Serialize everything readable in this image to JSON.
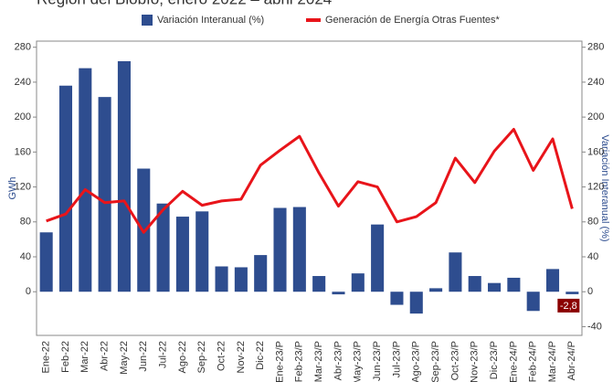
{
  "chart_data": {
    "type": "bar_line",
    "title": "Región del Biobío, enero 2022 – abril 2024",
    "y_label": "GWh",
    "y2_label": "Variación Interanual (%)",
    "categories": [
      "Ene-22",
      "Feb-22",
      "Mar-22",
      "Abr-22",
      "May-22",
      "Jun-22",
      "Jul-22",
      "Ago-22",
      "Sep-22",
      "Oct-22",
      "Nov-22",
      "Dic-22",
      "Ene-23/P",
      "Feb-23/P",
      "Mar-23/P",
      "Abr-23/P",
      "May-23/P",
      "Jun-23/P",
      "Jul-23/P",
      "Ago-23/P",
      "Sep-23/P",
      "Oct-23/P",
      "Nov-23/P",
      "Dic-23/P",
      "Ene-24/P",
      "Feb-24/P",
      "Mar-24/P",
      "Abr-24/P"
    ],
    "series": [
      {
        "name": "Variación Interanual (%)",
        "type": "bar",
        "axis": "y2",
        "color": "#2e4d8f",
        "values": [
          68,
          236,
          256,
          223,
          264,
          141,
          101,
          86,
          92,
          29,
          28,
          42,
          96,
          97,
          18,
          -3,
          21,
          77,
          -15,
          -25,
          4,
          45,
          18,
          10,
          16,
          -22,
          26,
          -2.8
        ],
        "value_labels": [
          null,
          null,
          null,
          null,
          null,
          null,
          null,
          null,
          null,
          null,
          null,
          null,
          null,
          null,
          null,
          null,
          null,
          null,
          null,
          null,
          null,
          null,
          null,
          null,
          null,
          null,
          null,
          "-2,8"
        ]
      },
      {
        "name": "Generación de Energía Otras Fuentes*",
        "type": "line",
        "axis": "y",
        "color": "#e8141a",
        "values": [
          81,
          89,
          117,
          102,
          104,
          68,
          94,
          115,
          99,
          104,
          106,
          145,
          162,
          178,
          136,
          98,
          126,
          120,
          80,
          86,
          102,
          153,
          125,
          161,
          186,
          139,
          175,
          95
        ]
      }
    ],
    "ylim": [
      -50,
      287
    ],
    "yticks": [
      0,
      40,
      80,
      120,
      160,
      200,
      240,
      280
    ],
    "y2lim": [
      -50,
      287
    ],
    "y2ticks": [
      -40,
      0,
      40,
      80,
      120,
      160,
      200,
      240,
      280
    ]
  }
}
